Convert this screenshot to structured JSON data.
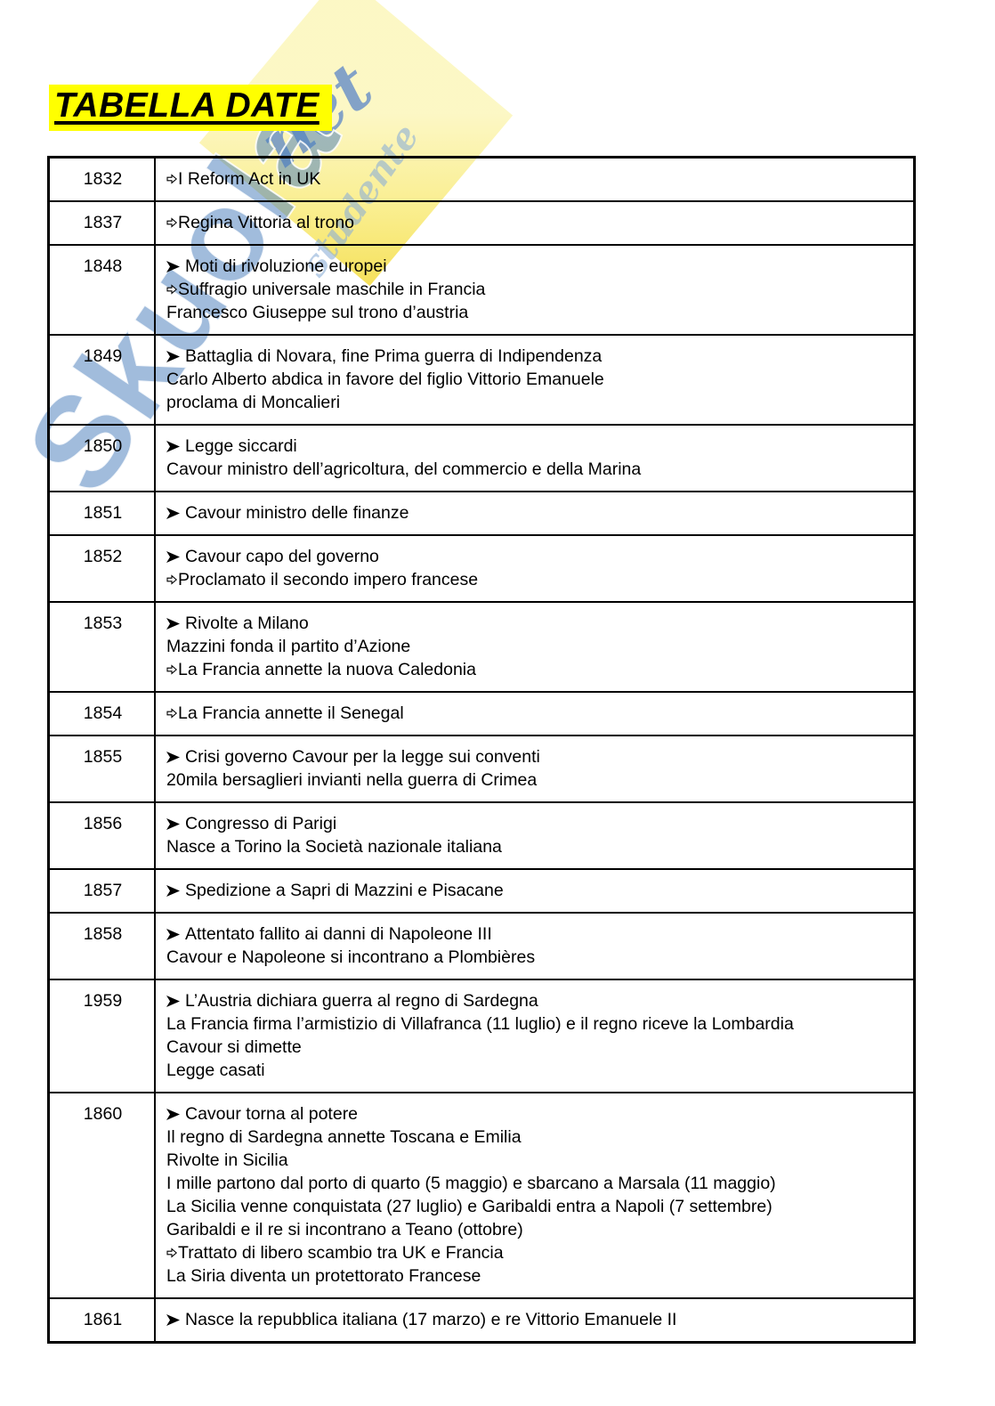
{
  "page": {
    "title": "TABELLA DATE"
  },
  "watermark": {
    "brand": "Skuola",
    "net_label": "net",
    "tagline": "studente"
  },
  "table": {
    "rows": [
      {
        "year": "1832",
        "lines": [
          {
            "bullet": "white-arrow",
            "text": "I Reform Act in UK"
          }
        ]
      },
      {
        "year": "1837",
        "lines": [
          {
            "bullet": "white-arrow",
            "text": "Regina Vittoria al trono"
          }
        ]
      },
      {
        "year": "1848",
        "lines": [
          {
            "bullet": "arrowhead",
            "text": "Moti di rivoluzione europei"
          },
          {
            "bullet": "white-arrow",
            "text": "Suffragio universale maschile in Francia"
          },
          {
            "bullet": "none",
            "text": "Francesco Giuseppe sul trono d’austria"
          }
        ]
      },
      {
        "year": "1849",
        "lines": [
          {
            "bullet": "arrowhead",
            "text": "Battaglia di Novara, fine Prima guerra di Indipendenza"
          },
          {
            "bullet": "none",
            "text": "Carlo Alberto abdica in favore del figlio Vittorio Emanuele"
          },
          {
            "bullet": "none",
            "text": "proclama di Moncalieri"
          }
        ]
      },
      {
        "year": "1850",
        "lines": [
          {
            "bullet": "arrowhead",
            "text": "Legge siccardi"
          },
          {
            "bullet": "none",
            "text": "Cavour ministro dell’agricoltura, del commercio e della Marina"
          }
        ]
      },
      {
        "year": "1851",
        "lines": [
          {
            "bullet": "arrowhead",
            "text": "Cavour ministro delle finanze"
          }
        ]
      },
      {
        "year": "1852",
        "lines": [
          {
            "bullet": "arrowhead",
            "text": "Cavour capo del governo"
          },
          {
            "bullet": "white-arrow",
            "text": "Proclamato il secondo impero francese"
          }
        ]
      },
      {
        "year": "1853",
        "lines": [
          {
            "bullet": "arrowhead",
            "text": "Rivolte a Milano"
          },
          {
            "bullet": "none",
            "text": "Mazzini fonda il partito d’Azione"
          },
          {
            "bullet": "white-arrow",
            "text": "La Francia annette la nuova Caledonia"
          }
        ]
      },
      {
        "year": "1854",
        "lines": [
          {
            "bullet": "white-arrow",
            "text": "La Francia annette il Senegal"
          }
        ]
      },
      {
        "year": "1855",
        "lines": [
          {
            "bullet": "arrowhead",
            "text": "Crisi governo Cavour per la legge sui conventi"
          },
          {
            "bullet": "none",
            "text": "20mila bersaglieri invianti nella guerra di Crimea"
          }
        ]
      },
      {
        "year": "1856",
        "lines": [
          {
            "bullet": "arrowhead",
            "text": "Congresso di Parigi"
          },
          {
            "bullet": "none",
            "text": "Nasce a Torino la Società nazionale italiana"
          }
        ]
      },
      {
        "year": "1857",
        "lines": [
          {
            "bullet": "arrowhead",
            "text": "Spedizione a Sapri di Mazzini e Pisacane"
          }
        ]
      },
      {
        "year": "1858",
        "lines": [
          {
            "bullet": "arrowhead",
            "text": "Attentato fallito ai danni di Napoleone III"
          },
          {
            "bullet": "none",
            "text": "Cavour e Napoleone si incontrano a Plombières"
          }
        ]
      },
      {
        "year": "1959",
        "lines": [
          {
            "bullet": "arrowhead",
            "text": "L’Austria dichiara guerra al regno di Sardegna"
          },
          {
            "bullet": "none",
            "text": "La Francia firma l’armistizio di Villafranca (11 luglio) e il regno riceve la Lombardia"
          },
          {
            "bullet": "none",
            "text": "Cavour si dimette"
          },
          {
            "bullet": "none",
            "text": "Legge casati"
          }
        ]
      },
      {
        "year": "1860",
        "lines": [
          {
            "bullet": "arrowhead",
            "text": "Cavour torna al potere"
          },
          {
            "bullet": "none",
            "text": "Il regno di Sardegna annette Toscana e Emilia"
          },
          {
            "bullet": "none",
            "text": "Rivolte in Sicilia"
          },
          {
            "bullet": "none",
            "text": "I mille partono dal porto di quarto (5 maggio) e sbarcano a Marsala (11 maggio)"
          },
          {
            "bullet": "none",
            "text": "La Sicilia venne conquistata (27 luglio) e Garibaldi entra a Napoli (7 settembre)"
          },
          {
            "bullet": "none",
            "text": "Garibaldi e il re si incontrano a Teano (ottobre)"
          },
          {
            "bullet": "white-arrow",
            "text": "Trattato di libero scambio tra UK e Francia"
          },
          {
            "bullet": "none",
            "text": "La Siria diventa un protettorato Francese"
          }
        ]
      },
      {
        "year": "1861",
        "lines": [
          {
            "bullet": "arrowhead",
            "text": "Nasce la repubblica italiana (17 marzo) e re Vittorio Emanuele II"
          }
        ]
      }
    ]
  }
}
